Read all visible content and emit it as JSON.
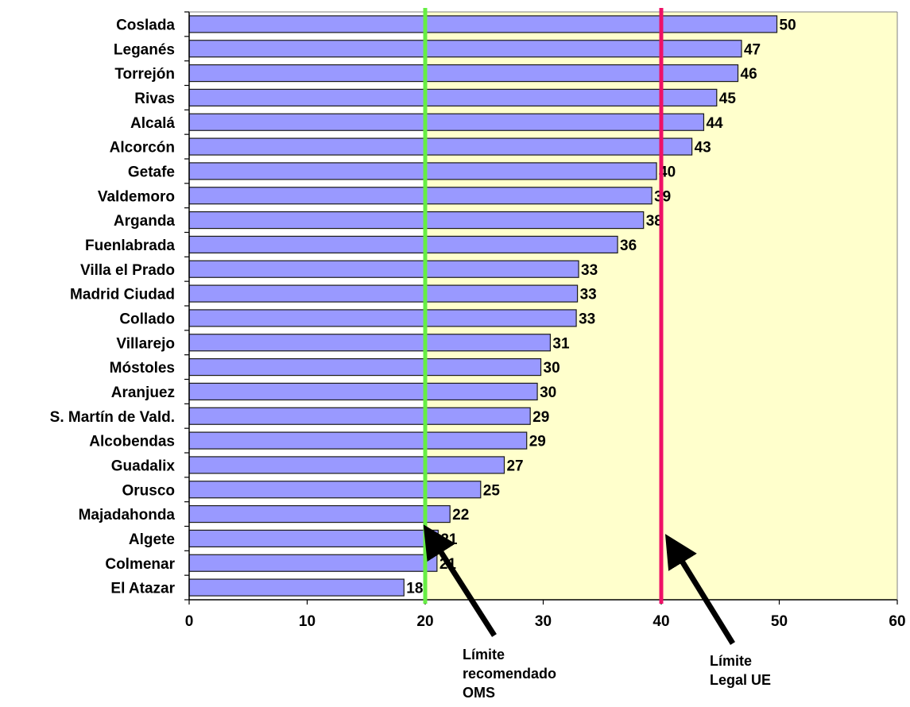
{
  "chart_data": {
    "type": "bar",
    "orientation": "horizontal",
    "categories": [
      "Coslada",
      "Leganés",
      "Torrejón",
      "Rivas",
      "Alcalá",
      "Alcorcón",
      "Getafe",
      "Valdemoro",
      "Arganda",
      "Fuenlabrada",
      "Villa el Prado",
      "Madrid Ciudad",
      "Collado",
      "Villarejo",
      "Móstoles",
      "Aranjuez",
      "S. Martín de Vald.",
      "Alcobendas",
      "Guadalix",
      "Orusco",
      "Majadahonda",
      "Algete",
      "Colmenar",
      "El Atazar"
    ],
    "values": [
      49.8,
      46.8,
      46.5,
      44.7,
      43.6,
      42.6,
      39.6,
      39.2,
      38.5,
      36.3,
      33.0,
      32.9,
      32.8,
      30.6,
      29.8,
      29.5,
      28.9,
      28.6,
      26.7,
      24.7,
      22.1,
      21.1,
      21.0,
      18.2
    ],
    "data_labels": [
      "50",
      "47",
      "46",
      "45",
      "44",
      "43",
      "40",
      "39",
      "38",
      "36",
      "33",
      "33",
      "33",
      "31",
      "30",
      "30",
      "29",
      "29",
      "27",
      "25",
      "22",
      "21",
      "21",
      "18"
    ],
    "xlim": [
      0,
      60
    ],
    "x_ticks": [
      "0",
      "10",
      "20",
      "30",
      "40",
      "50",
      "60"
    ],
    "grid": false,
    "legend": "none",
    "title": "",
    "xlabel": "",
    "ylabel": "",
    "reference_lines": [
      {
        "x": 20,
        "color": "#66ee44",
        "label_lines": [
          "Límite",
          "recomendado",
          "OMS"
        ]
      },
      {
        "x": 40,
        "color": "#ee1166",
        "label_lines": [
          "Límite",
          "Legal UE"
        ]
      }
    ],
    "colors": {
      "bar_fill": "#9999ff",
      "bar_stroke": "#1a1a1a",
      "shaded_region": "#ffffcc"
    },
    "shaded_from_x": 20
  }
}
